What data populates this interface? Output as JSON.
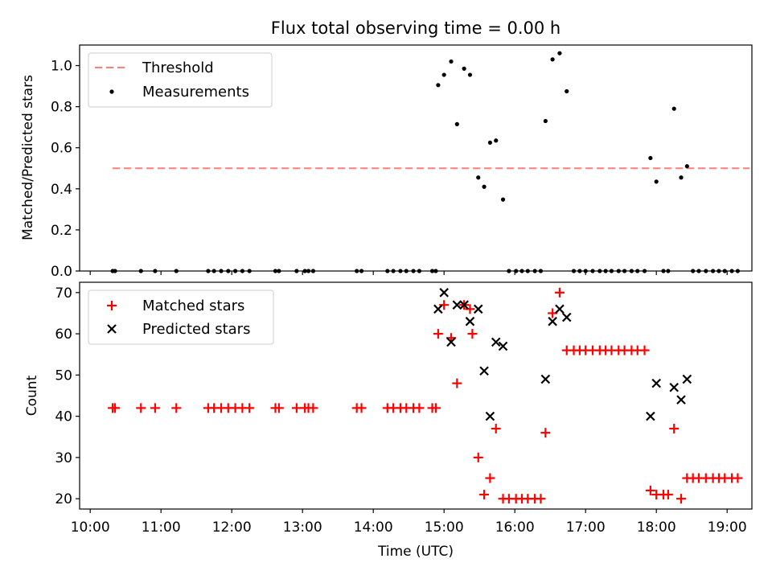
{
  "figure": {
    "title": "Flux total observing time = 0.00 h"
  },
  "chart_data": [
    {
      "type": "scatter",
      "ylabel": "Matched/Predicted stars",
      "xlabel": "",
      "ylim": [
        0,
        1.1
      ],
      "xlim_hours": [
        9.85,
        19.35
      ],
      "yticks": [
        0.0,
        0.2,
        0.4,
        0.6,
        0.8,
        1.0
      ],
      "ytick_labels": [
        "0.0",
        "0.2",
        "0.4",
        "0.6",
        "0.8",
        "1.0"
      ],
      "legend_position": "upper-left",
      "colors": {
        "threshold": "#ff7f7f",
        "measurements": "#000000"
      },
      "threshold": {
        "name": "Threshold",
        "value": 0.5,
        "x_range": [
          "10:19",
          "19:19"
        ]
      },
      "series": [
        {
          "name": "Measurements",
          "points": [
            [
              "10:19",
              0
            ],
            [
              "10:21",
              0
            ],
            [
              "10:43",
              0
            ],
            [
              "10:55",
              0
            ],
            [
              "11:13",
              0
            ],
            [
              "11:40",
              0
            ],
            [
              "11:45",
              0
            ],
            [
              "11:51",
              0
            ],
            [
              "11:57",
              0
            ],
            [
              "12:03",
              0
            ],
            [
              "12:09",
              0
            ],
            [
              "12:15",
              0
            ],
            [
              "12:37",
              0
            ],
            [
              "12:40",
              0
            ],
            [
              "12:55",
              0
            ],
            [
              "13:02",
              0
            ],
            [
              "13:05",
              0
            ],
            [
              "13:09",
              0
            ],
            [
              "13:46",
              0
            ],
            [
              "13:50",
              0
            ],
            [
              "14:12",
              0
            ],
            [
              "14:17",
              0
            ],
            [
              "14:23",
              0
            ],
            [
              "14:28",
              0
            ],
            [
              "14:34",
              0
            ],
            [
              "14:39",
              0
            ],
            [
              "14:50",
              0
            ],
            [
              "14:53",
              0
            ],
            [
              "14:55",
              0.905
            ],
            [
              "15:00",
              0.955
            ],
            [
              "15:06",
              1.02
            ],
            [
              "15:11",
              0.715
            ],
            [
              "15:17",
              0.985
            ],
            [
              "15:22",
              0.955
            ],
            [
              "15:29",
              0.455
            ],
            [
              "15:34",
              0.41
            ],
            [
              "15:39",
              0.625
            ],
            [
              "15:44",
              0.635
            ],
            [
              "15:50",
              0.348
            ],
            [
              "15:55",
              0
            ],
            [
              "16:01",
              0
            ],
            [
              "16:06",
              0
            ],
            [
              "16:11",
              0
            ],
            [
              "16:17",
              0
            ],
            [
              "16:22",
              0
            ],
            [
              "16:26",
              0.73
            ],
            [
              "16:32",
              1.03
            ],
            [
              "16:38",
              1.06
            ],
            [
              "16:44",
              0.875
            ],
            [
              "16:50",
              0
            ],
            [
              "16:55",
              0
            ],
            [
              "17:00",
              0
            ],
            [
              "17:06",
              0
            ],
            [
              "17:12",
              0
            ],
            [
              "17:17",
              0
            ],
            [
              "17:22",
              0
            ],
            [
              "17:28",
              0
            ],
            [
              "17:33",
              0
            ],
            [
              "17:39",
              0
            ],
            [
              "17:44",
              0
            ],
            [
              "17:50",
              0
            ],
            [
              "17:55",
              0.55
            ],
            [
              "18:00",
              0.435
            ],
            [
              "18:06",
              0
            ],
            [
              "18:10",
              0
            ],
            [
              "18:15",
              0.79
            ],
            [
              "18:21",
              0.455
            ],
            [
              "18:26",
              0.51
            ],
            [
              "18:31",
              0
            ],
            [
              "18:36",
              0
            ],
            [
              "18:42",
              0
            ],
            [
              "18:48",
              0
            ],
            [
              "18:53",
              0
            ],
            [
              "18:58",
              0
            ],
            [
              "19:04",
              0
            ],
            [
              "19:09",
              0
            ]
          ]
        }
      ]
    },
    {
      "type": "scatter",
      "xlabel": "Time (UTC)",
      "ylabel": "Count",
      "ylim": [
        17.5,
        72.5
      ],
      "xlim_hours": [
        9.85,
        19.35
      ],
      "xticks": [
        "10:00",
        "11:00",
        "12:00",
        "13:00",
        "14:00",
        "15:00",
        "16:00",
        "17:00",
        "18:00",
        "19:00"
      ],
      "yticks": [
        20,
        30,
        40,
        50,
        60,
        70
      ],
      "ytick_labels": [
        "20",
        "30",
        "40",
        "50",
        "60",
        "70"
      ],
      "legend_position": "upper-left",
      "colors": {
        "matched": "#ff0000",
        "predicted": "#000000"
      },
      "series": [
        {
          "name": "Matched stars",
          "marker": "plus",
          "points": [
            [
              "10:19",
              42
            ],
            [
              "10:21",
              42
            ],
            [
              "10:43",
              42
            ],
            [
              "10:55",
              42
            ],
            [
              "11:13",
              42
            ],
            [
              "11:40",
              42
            ],
            [
              "11:45",
              42
            ],
            [
              "11:51",
              42
            ],
            [
              "11:57",
              42
            ],
            [
              "12:03",
              42
            ],
            [
              "12:09",
              42
            ],
            [
              "12:15",
              42
            ],
            [
              "12:37",
              42
            ],
            [
              "12:40",
              42
            ],
            [
              "12:55",
              42
            ],
            [
              "13:02",
              42
            ],
            [
              "13:05",
              42
            ],
            [
              "13:09",
              42
            ],
            [
              "13:46",
              42
            ],
            [
              "13:50",
              42
            ],
            [
              "14:12",
              42
            ],
            [
              "14:17",
              42
            ],
            [
              "14:23",
              42
            ],
            [
              "14:28",
              42
            ],
            [
              "14:34",
              42
            ],
            [
              "14:39",
              42
            ],
            [
              "14:50",
              42
            ],
            [
              "14:53",
              42
            ],
            [
              "14:55",
              60
            ],
            [
              "15:00",
              67
            ],
            [
              "15:06",
              59
            ],
            [
              "15:11",
              48
            ],
            [
              "15:17",
              67
            ],
            [
              "15:22",
              66
            ],
            [
              "15:24",
              60
            ],
            [
              "15:29",
              30
            ],
            [
              "15:34",
              21
            ],
            [
              "15:39",
              25
            ],
            [
              "15:44",
              37
            ],
            [
              "15:50",
              20
            ],
            [
              "15:55",
              20
            ],
            [
              "16:01",
              20
            ],
            [
              "16:06",
              20
            ],
            [
              "16:11",
              20
            ],
            [
              "16:17",
              20
            ],
            [
              "16:22",
              20
            ],
            [
              "16:26",
              36
            ],
            [
              "16:32",
              65
            ],
            [
              "16:38",
              70
            ],
            [
              "16:44",
              56
            ],
            [
              "16:50",
              56
            ],
            [
              "16:55",
              56
            ],
            [
              "17:00",
              56
            ],
            [
              "17:06",
              56
            ],
            [
              "17:12",
              56
            ],
            [
              "17:17",
              56
            ],
            [
              "17:22",
              56
            ],
            [
              "17:28",
              56
            ],
            [
              "17:33",
              56
            ],
            [
              "17:39",
              56
            ],
            [
              "17:44",
              56
            ],
            [
              "17:50",
              56
            ],
            [
              "17:55",
              22
            ],
            [
              "18:00",
              21
            ],
            [
              "18:06",
              21
            ],
            [
              "18:10",
              21
            ],
            [
              "18:15",
              37
            ],
            [
              "18:21",
              20
            ],
            [
              "18:26",
              25
            ],
            [
              "18:31",
              25
            ],
            [
              "18:36",
              25
            ],
            [
              "18:42",
              25
            ],
            [
              "18:48",
              25
            ],
            [
              "18:53",
              25
            ],
            [
              "18:58",
              25
            ],
            [
              "19:04",
              25
            ],
            [
              "19:09",
              25
            ]
          ]
        },
        {
          "name": "Predicted stars",
          "marker": "x",
          "points": [
            [
              "14:55",
              66
            ],
            [
              "15:00",
              70
            ],
            [
              "15:06",
              58
            ],
            [
              "15:11",
              67
            ],
            [
              "15:17",
              67
            ],
            [
              "15:22",
              63
            ],
            [
              "15:29",
              66
            ],
            [
              "15:34",
              51
            ],
            [
              "15:39",
              40
            ],
            [
              "15:44",
              58
            ],
            [
              "15:50",
              57
            ],
            [
              "16:26",
              49
            ],
            [
              "16:32",
              63
            ],
            [
              "16:38",
              66
            ],
            [
              "16:44",
              64
            ],
            [
              "17:55",
              40
            ],
            [
              "18:00",
              48
            ],
            [
              "18:15",
              47
            ],
            [
              "18:21",
              44
            ],
            [
              "18:26",
              49
            ]
          ]
        }
      ]
    }
  ]
}
